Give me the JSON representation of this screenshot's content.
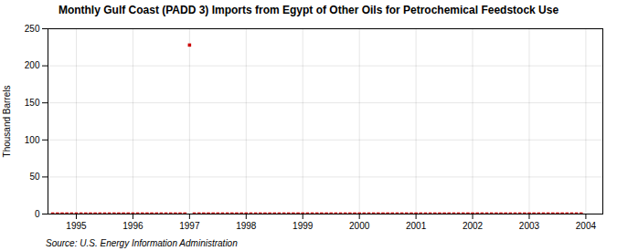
{
  "chart_data": {
    "type": "scatter",
    "title": "Monthly Gulf Coast (PADD 3) Imports from Egypt of Other Oils for Petrochemical Feedstock Use",
    "ylabel": "Thousand Barrels",
    "source": "Source: U.S. Energy Information Administration",
    "x": [
      1994.583,
      1994.667,
      1994.75,
      1994.833,
      1994.917,
      1995.0,
      1995.083,
      1995.167,
      1995.25,
      1995.333,
      1995.417,
      1995.5,
      1995.583,
      1995.667,
      1995.75,
      1995.833,
      1995.917,
      1996.0,
      1996.083,
      1996.167,
      1996.25,
      1996.333,
      1996.417,
      1996.5,
      1996.583,
      1996.667,
      1996.75,
      1996.833,
      1996.917,
      1997.0,
      1997.083,
      1997.167,
      1997.25,
      1997.333,
      1997.417,
      1997.5,
      1997.583,
      1997.667,
      1997.75,
      1997.833,
      1997.917,
      1998.0,
      1998.083,
      1998.167,
      1998.25,
      1998.333,
      1998.417,
      1998.5,
      1998.583,
      1998.667,
      1998.75,
      1998.833,
      1998.917,
      1999.0,
      1999.083,
      1999.167,
      1999.25,
      1999.333,
      1999.417,
      1999.5,
      1999.583,
      1999.667,
      1999.75,
      1999.833,
      1999.917,
      2000.0,
      2000.083,
      2000.167,
      2000.25,
      2000.333,
      2000.417,
      2000.5,
      2000.583,
      2000.667,
      2000.75,
      2000.833,
      2000.917,
      2001.0,
      2001.083,
      2001.167,
      2001.25,
      2001.333,
      2001.417,
      2001.5,
      2001.583,
      2001.667,
      2001.75,
      2001.833,
      2001.917,
      2002.0,
      2002.083,
      2002.167,
      2002.25,
      2002.333,
      2002.417,
      2002.5,
      2002.583,
      2002.667,
      2002.75,
      2002.833,
      2002.917,
      2003.0,
      2003.083,
      2003.167,
      2003.25,
      2003.333,
      2003.417,
      2003.5,
      2003.583,
      2003.667,
      2003.75,
      2003.833,
      2003.917
    ],
    "values": [
      0,
      0,
      0,
      0,
      0,
      0,
      0,
      0,
      0,
      0,
      0,
      0,
      0,
      0,
      0,
      0,
      0,
      0,
      0,
      0,
      0,
      0,
      0,
      0,
      0,
      0,
      0,
      0,
      0,
      228,
      0,
      0,
      0,
      0,
      0,
      0,
      0,
      0,
      0,
      0,
      0,
      0,
      0,
      0,
      0,
      0,
      0,
      0,
      0,
      0,
      0,
      0,
      0,
      0,
      0,
      0,
      0,
      0,
      0,
      0,
      0,
      0,
      0,
      0,
      0,
      0,
      0,
      0,
      0,
      0,
      0,
      0,
      0,
      0,
      0,
      0,
      0,
      0,
      0,
      0,
      0,
      0,
      0,
      0,
      0,
      0,
      0,
      0,
      0,
      0,
      0,
      0,
      0,
      0,
      0,
      0,
      0,
      0,
      0,
      0,
      0,
      0,
      0,
      0,
      0,
      0,
      0,
      0,
      0,
      0,
      0,
      0,
      0
    ],
    "color": "#cc0000",
    "marker": "square",
    "xlim": [
      1994.5,
      2004.3
    ],
    "xticks": [
      1995,
      1996,
      1997,
      1998,
      1999,
      2000,
      2001,
      2002,
      2003,
      2004
    ],
    "ylim": [
      0,
      250
    ],
    "yticks": [
      0,
      50,
      100,
      150,
      200,
      250
    ],
    "grid": true
  }
}
